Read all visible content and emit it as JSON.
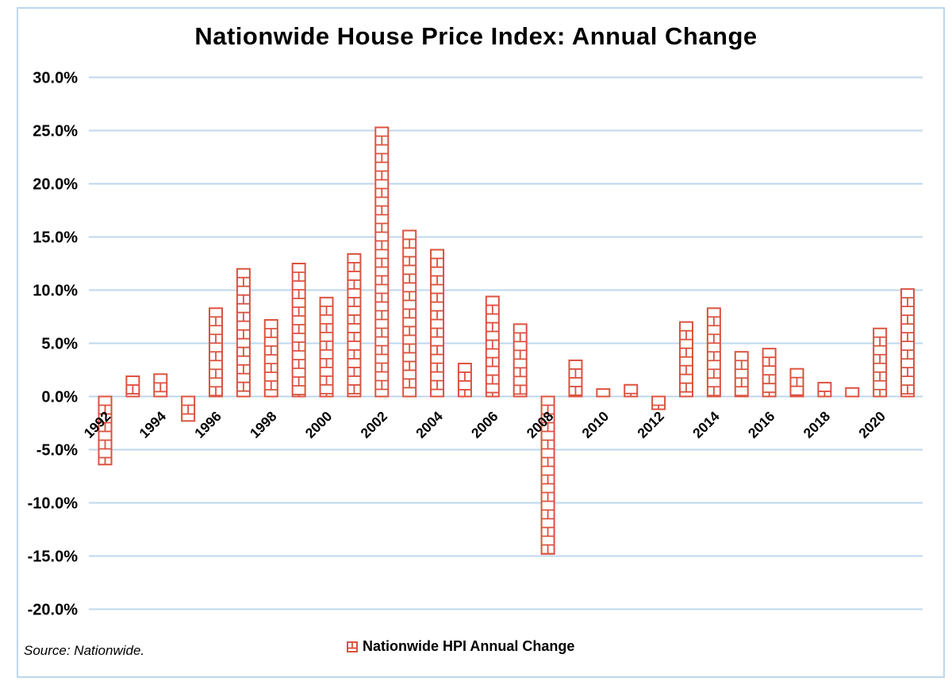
{
  "title": "Nationwide House Price Index: Annual Change",
  "source_note": "Source: Nationwide.",
  "legend": {
    "label": "Nationwide HPI Annual Change"
  },
  "colors": {
    "brick_red": "#DC5240",
    "gridline_blue": "#BDD7EE",
    "border_blue": "#BDD7EE",
    "text_black": "#000000",
    "bar_fill_white": "#FFFFFF"
  },
  "chart_data": {
    "type": "bar",
    "title": "Nationwide House Price Index: Annual Change",
    "series_name": "Nationwide HPI Annual Change",
    "unit": "%",
    "categories": [
      1992,
      1993,
      1994,
      1995,
      1996,
      1997,
      1998,
      1999,
      2000,
      2001,
      2002,
      2003,
      2004,
      2005,
      2006,
      2007,
      2008,
      2009,
      2010,
      2011,
      2012,
      2013,
      2014,
      2015,
      2016,
      2017,
      2018,
      2019,
      2020,
      2021
    ],
    "values": [
      -6.4,
      1.9,
      2.1,
      -2.3,
      8.3,
      12.0,
      7.2,
      12.5,
      9.3,
      13.4,
      25.3,
      15.6,
      13.8,
      3.1,
      9.4,
      6.8,
      -14.8,
      3.4,
      0.7,
      1.1,
      -1.2,
      7.0,
      8.3,
      4.2,
      4.5,
      2.6,
      1.3,
      0.8,
      6.4,
      10.1
    ],
    "xlabel": "",
    "ylabel": "",
    "ylim": [
      -20,
      30
    ],
    "ytick_step": 5,
    "ytick_labels": [
      "30.0%",
      "25.0%",
      "20.0%",
      "15.0%",
      "10.0%",
      "5.0%",
      "0.0%",
      "-5.0%",
      "-10.0%",
      "-15.0%",
      "-20.0%"
    ],
    "ytick_values": [
      30,
      25,
      20,
      15,
      10,
      5,
      0,
      -5,
      -10,
      -15,
      -20
    ],
    "xtick_labels": [
      "1992",
      "1994",
      "1996",
      "1998",
      "2000",
      "2002",
      "2004",
      "2006",
      "2008",
      "2010",
      "2012",
      "2014",
      "2016",
      "2018",
      "2020"
    ],
    "grid": true,
    "legend_position": "bottom"
  }
}
